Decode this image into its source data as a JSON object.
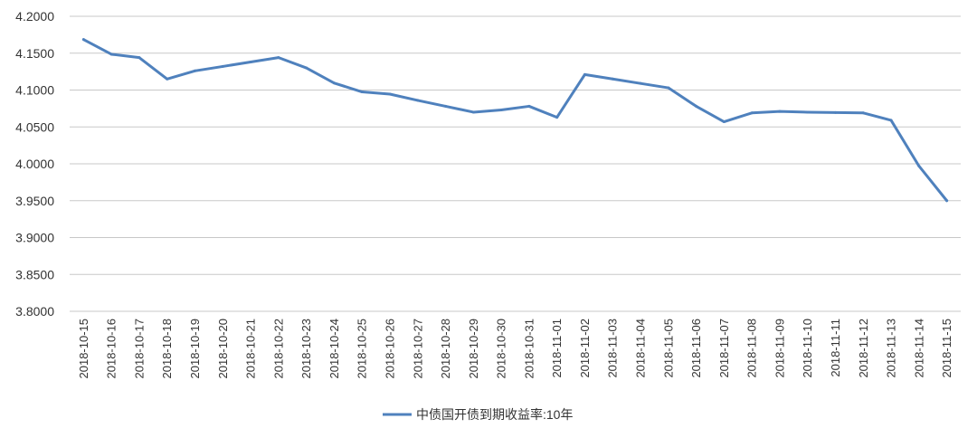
{
  "chart_data": {
    "type": "line",
    "x": [
      "2018-10-15",
      "2018-10-16",
      "2018-10-17",
      "2018-10-18",
      "2018-10-19",
      "2018-10-20",
      "2018-10-21",
      "2018-10-22",
      "2018-10-23",
      "2018-10-24",
      "2018-10-25",
      "2018-10-26",
      "2018-10-27",
      "2018-10-28",
      "2018-10-29",
      "2018-10-30",
      "2018-10-31",
      "2018-11-01",
      "2018-11-02",
      "2018-11-03",
      "2018-11-04",
      "2018-11-05",
      "2018-11-06",
      "2018-11-07",
      "2018-11-08",
      "2018-11-09",
      "2018-11-10",
      "2018-11-11",
      "2018-11-12",
      "2018-11-13",
      "2018-11-14",
      "2018-11-15"
    ],
    "series": [
      {
        "name": "中债国开债到期收益率:10年",
        "color": "#4F81BD",
        "values": [
          4.1685,
          4.1485,
          4.144,
          4.115,
          4.126,
          4.132,
          4.138,
          4.144,
          4.13,
          4.1095,
          4.0975,
          4.0945,
          4.086,
          4.078,
          4.07,
          4.073,
          4.078,
          4.063,
          4.121,
          4.115,
          4.109,
          4.103,
          4.078,
          4.057,
          4.069,
          4.071,
          4.07,
          4.0695,
          4.069,
          4.059,
          3.997,
          3.95
        ]
      }
    ],
    "ylim": [
      3.8,
      4.2
    ],
    "yticks": [
      "4.2000",
      "4.1500",
      "4.1000",
      "4.0500",
      "4.0000",
      "3.9500",
      "3.9000",
      "3.8500",
      "3.8000"
    ],
    "xlabel": "",
    "ylabel": "",
    "title": "",
    "grid": "horizontal",
    "legend_position": "bottom-center"
  }
}
